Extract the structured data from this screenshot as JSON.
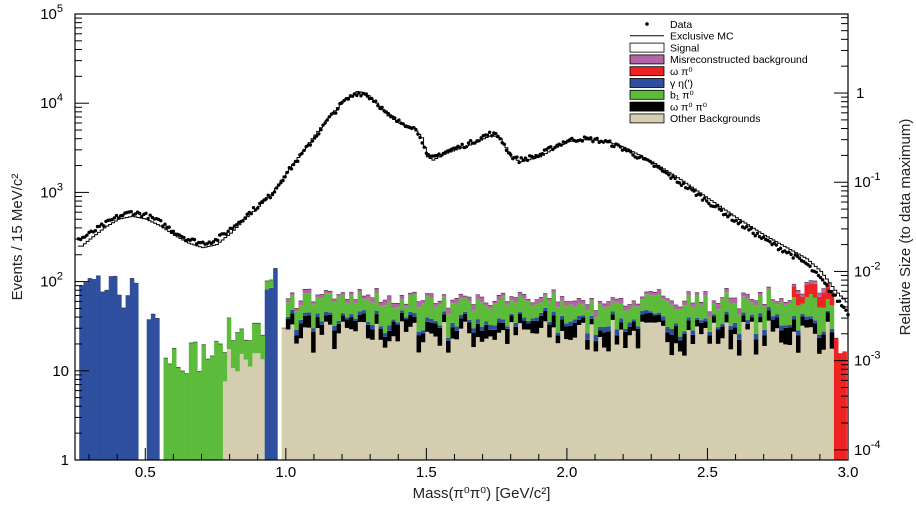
{
  "chart_data": {
    "type": "histogram",
    "xlabel": "Mass(π⁰π⁰)  [GeV/c²]",
    "ylabel": "Events / 15 MeV/c²",
    "y2label": "Relative Size (to data maximum)",
    "xlim": [
      0.25,
      3.0
    ],
    "ylim": [
      1,
      100000
    ],
    "yscale": "log",
    "x_ticks": [
      "0.5",
      "1.0",
      "1.5",
      "2.0",
      "2.5",
      "3.0"
    ],
    "y_ticks": [
      {
        "base": "10",
        "exp": "",
        "value": 1,
        "plain": "1"
      },
      {
        "base": "10",
        "exp": "",
        "value": 10,
        "plain": "10"
      },
      {
        "base": "10",
        "exp": "2",
        "value": 100
      },
      {
        "base": "10",
        "exp": "3",
        "value": 1000
      },
      {
        "base": "10",
        "exp": "4",
        "value": 10000
      },
      {
        "base": "10",
        "exp": "5",
        "value": 100000
      }
    ],
    "y2_ticks": [
      {
        "base": "",
        "exp": "",
        "plain": "1",
        "value": 13000
      },
      {
        "base": "10",
        "exp": "-1",
        "value": 1300
      },
      {
        "base": "10",
        "exp": "-2",
        "value": 130
      },
      {
        "base": "10",
        "exp": "-3",
        "value": 13
      },
      {
        "base": "10",
        "exp": "-4",
        "value": 1.3
      }
    ],
    "legend_position": "top-right",
    "legend": [
      {
        "label": "Data",
        "kind": "marker",
        "color": "#000000"
      },
      {
        "label": "Exclusive MC",
        "kind": "line",
        "color": "#000000"
      },
      {
        "label": "Signal",
        "kind": "box",
        "color": "#ffffff"
      },
      {
        "label": "Misreconstructed background",
        "kind": "box",
        "color": "#b565a7"
      },
      {
        "label": "ω π⁰",
        "kind": "box",
        "color": "#ee2222"
      },
      {
        "label": "γ η(')",
        "kind": "box",
        "color": "#2e4f9e"
      },
      {
        "label": "b₁ π⁰",
        "kind": "box",
        "color": "#5dbb3b"
      },
      {
        "label": "ω π⁰ π⁰",
        "kind": "box",
        "color": "#000000"
      },
      {
        "label": "Other Backgrounds",
        "kind": "box",
        "color": "#d4cdb0"
      }
    ],
    "data_curve": [
      [
        0.27,
        300
      ],
      [
        0.3,
        340
      ],
      [
        0.35,
        430
      ],
      [
        0.4,
        530
      ],
      [
        0.45,
        600
      ],
      [
        0.5,
        560
      ],
      [
        0.55,
        470
      ],
      [
        0.6,
        370
      ],
      [
        0.65,
        300
      ],
      [
        0.7,
        270
      ],
      [
        0.75,
        290
      ],
      [
        0.8,
        380
      ],
      [
        0.85,
        520
      ],
      [
        0.9,
        700
      ],
      [
        0.95,
        950
      ],
      [
        1.0,
        1600
      ],
      [
        1.05,
        2500
      ],
      [
        1.1,
        4000
      ],
      [
        1.15,
        6500
      ],
      [
        1.2,
        10000
      ],
      [
        1.25,
        13000
      ],
      [
        1.28,
        12800
      ],
      [
        1.32,
        10500
      ],
      [
        1.36,
        7500
      ],
      [
        1.4,
        6200
      ],
      [
        1.45,
        5500
      ],
      [
        1.48,
        4300
      ],
      [
        1.5,
        2600
      ],
      [
        1.52,
        2400
      ],
      [
        1.55,
        2700
      ],
      [
        1.6,
        3100
      ],
      [
        1.65,
        3500
      ],
      [
        1.7,
        4200
      ],
      [
        1.73,
        4600
      ],
      [
        1.76,
        4200
      ],
      [
        1.8,
        2600
      ],
      [
        1.83,
        2300
      ],
      [
        1.9,
        2600
      ],
      [
        1.95,
        3200
      ],
      [
        2.0,
        3800
      ],
      [
        2.05,
        4000
      ],
      [
        2.1,
        3900
      ],
      [
        2.15,
        3600
      ],
      [
        2.2,
        3100
      ],
      [
        2.3,
        2100
      ],
      [
        2.4,
        1300
      ],
      [
        2.5,
        800
      ],
      [
        2.6,
        480
      ],
      [
        2.7,
        300
      ],
      [
        2.8,
        200
      ],
      [
        2.85,
        160
      ],
      [
        2.9,
        110
      ],
      [
        2.95,
        70
      ],
      [
        3.0,
        45
      ]
    ],
    "mc_curve": [
      [
        0.27,
        250
      ],
      [
        0.3,
        300
      ],
      [
        0.35,
        400
      ],
      [
        0.4,
        500
      ],
      [
        0.45,
        540
      ],
      [
        0.5,
        500
      ],
      [
        0.55,
        420
      ],
      [
        0.6,
        330
      ],
      [
        0.65,
        270
      ],
      [
        0.7,
        240
      ],
      [
        0.75,
        260
      ],
      [
        0.8,
        350
      ],
      [
        0.85,
        500
      ],
      [
        0.9,
        700
      ],
      [
        0.95,
        1000
      ],
      [
        1.0,
        1700
      ],
      [
        1.05,
        2700
      ],
      [
        1.1,
        4400
      ],
      [
        1.15,
        7000
      ],
      [
        1.2,
        10500
      ],
      [
        1.25,
        13500
      ],
      [
        1.28,
        13000
      ],
      [
        1.32,
        10000
      ],
      [
        1.36,
        7200
      ],
      [
        1.4,
        6000
      ],
      [
        1.45,
        5300
      ],
      [
        1.48,
        4100
      ],
      [
        1.5,
        2500
      ],
      [
        1.52,
        2300
      ],
      [
        1.55,
        2600
      ],
      [
        1.6,
        3000
      ],
      [
        1.65,
        3400
      ],
      [
        1.7,
        4000
      ],
      [
        1.73,
        4400
      ],
      [
        1.76,
        4000
      ],
      [
        1.8,
        2500
      ],
      [
        1.83,
        2200
      ],
      [
        1.9,
        2500
      ],
      [
        1.95,
        3100
      ],
      [
        2.0,
        3700
      ],
      [
        2.05,
        3900
      ],
      [
        2.1,
        3850
      ],
      [
        2.15,
        3600
      ],
      [
        2.2,
        3200
      ],
      [
        2.3,
        2200
      ],
      [
        2.4,
        1400
      ],
      [
        2.5,
        850
      ],
      [
        2.6,
        520
      ],
      [
        2.7,
        330
      ],
      [
        2.8,
        220
      ],
      [
        2.85,
        180
      ],
      [
        2.9,
        130
      ],
      [
        2.95,
        80
      ],
      [
        3.0,
        55
      ]
    ],
    "stack_profile": {
      "bin_width": 0.015,
      "bands": [
        {
          "name": "Other Backgrounds",
          "color": "#d4cdb0",
          "ranges": [
            [
              0.78,
              0.93,
              12
            ],
            [
              0.99,
              2.95,
              25
            ]
          ]
        },
        {
          "name": "ω π⁰ π⁰",
          "color": "#000000",
          "ranges": [
            [
              1.0,
              2.95,
              8
            ]
          ]
        },
        {
          "name": "γ η(')",
          "color": "#2e4f9e",
          "ranges": [
            [
              0.27,
              0.48,
              80
            ],
            [
              0.5,
              0.55,
              30
            ],
            [
              0.93,
              0.97,
              110
            ],
            [
              1.0,
              2.95,
              3
            ]
          ]
        },
        {
          "name": "b₁ π⁰",
          "color": "#5dbb3b",
          "ranges": [
            [
              0.56,
              0.95,
              15
            ],
            [
              1.0,
              2.95,
              22
            ]
          ]
        },
        {
          "name": "ω π⁰",
          "color": "#ee2222",
          "ranges": [
            [
              2.8,
              3.0,
              20
            ]
          ]
        },
        {
          "name": "Misreconstructed background",
          "color": "#b565a7",
          "ranges": [
            [
              1.0,
              2.95,
              6
            ]
          ]
        }
      ]
    }
  }
}
